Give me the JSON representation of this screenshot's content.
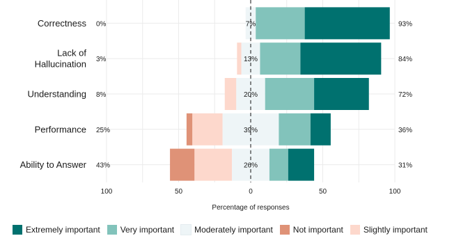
{
  "chart_data": {
    "type": "bar",
    "orientation": "horizontal-diverging",
    "xlabel": "Percentage of responses",
    "xlim": [
      -100,
      100
    ],
    "xticks": [
      -100,
      -50,
      0,
      50,
      100
    ],
    "xtick_labels": [
      "100",
      "50",
      "0",
      "50",
      "100"
    ],
    "grid": true,
    "legend_position": "bottom",
    "categories": [
      "Correctness",
      "Lack of\nHallucination",
      "Understanding",
      "Performance",
      "Ability to Answer"
    ],
    "series": [
      {
        "name": "Extremely important",
        "color": "#00716f",
        "values": [
          59,
          56,
          38,
          14,
          18
        ]
      },
      {
        "name": "Very important",
        "color": "#82c3bb",
        "values": [
          34,
          28,
          34,
          22,
          13
        ]
      },
      {
        "name": "Moderately important",
        "color": "#eef5f7",
        "values": [
          7,
          13,
          20,
          39,
          26
        ]
      },
      {
        "name": "Not important",
        "color": "#df9277",
        "values": [
          0,
          0,
          0,
          4,
          17
        ]
      },
      {
        "name": "Slightly important",
        "color": "#fdd8cc",
        "values": [
          0,
          3,
          8,
          21,
          26
        ]
      }
    ],
    "left_percent_labels": [
      "0%",
      "3%",
      "8%",
      "25%",
      "43%"
    ],
    "center_percent_labels": [
      "7%",
      "13%",
      "20%",
      "39%",
      "26%"
    ],
    "right_percent_labels": [
      "93%",
      "84%",
      "72%",
      "36%",
      "31%"
    ]
  }
}
